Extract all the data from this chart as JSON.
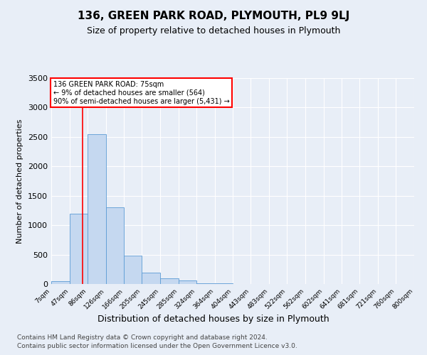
{
  "title": "136, GREEN PARK ROAD, PLYMOUTH, PL9 9LJ",
  "subtitle": "Size of property relative to detached houses in Plymouth",
  "xlabel": "Distribution of detached houses by size in Plymouth",
  "ylabel": "Number of detached properties",
  "bin_labels": [
    "7sqm",
    "47sqm",
    "86sqm",
    "126sqm",
    "166sqm",
    "205sqm",
    "245sqm",
    "285sqm",
    "324sqm",
    "364sqm",
    "404sqm",
    "443sqm",
    "483sqm",
    "522sqm",
    "562sqm",
    "602sqm",
    "641sqm",
    "681sqm",
    "721sqm",
    "760sqm",
    "800sqm"
  ],
  "bin_edges": [
    7,
    47,
    86,
    126,
    166,
    205,
    245,
    285,
    324,
    364,
    404,
    443,
    483,
    522,
    562,
    602,
    641,
    681,
    721,
    760,
    800
  ],
  "bar_heights": [
    50,
    1200,
    2550,
    1300,
    480,
    195,
    100,
    55,
    15,
    10,
    5,
    3,
    3,
    2,
    2,
    1,
    1,
    1,
    1,
    1
  ],
  "bar_color": "#c5d8f0",
  "bar_edgecolor": "#5b9bd5",
  "property_size": 75,
  "vline_color": "red",
  "annotation_line1": "136 GREEN PARK ROAD: 75sqm",
  "annotation_line2": "← 9% of detached houses are smaller (564)",
  "annotation_line3": "90% of semi-detached houses are larger (5,431) →",
  "annotation_color": "red",
  "ylim": [
    0,
    3500
  ],
  "yticks": [
    0,
    500,
    1000,
    1500,
    2000,
    2500,
    3000,
    3500
  ],
  "bg_color": "#e8eef7",
  "plot_bg_color": "#e8eef7",
  "title_fontsize": 11,
  "subtitle_fontsize": 9,
  "xlabel_fontsize": 9,
  "ylabel_fontsize": 8,
  "footer_fontsize": 6.5,
  "footer_line1": "Contains HM Land Registry data © Crown copyright and database right 2024.",
  "footer_line2": "Contains public sector information licensed under the Open Government Licence v3.0."
}
